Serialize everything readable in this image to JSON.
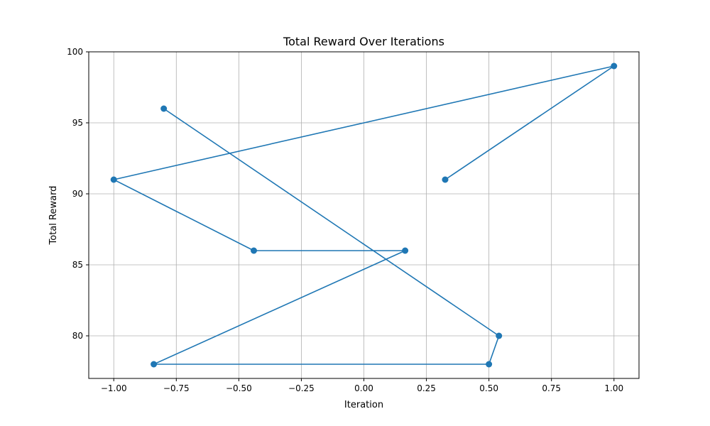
{
  "chart_data": {
    "type": "line",
    "title": "Total Reward Over Iterations",
    "xlabel": "Iteration",
    "ylabel": "Total Reward",
    "xlim": [
      -1.1,
      1.1
    ],
    "ylim": [
      77,
      100
    ],
    "x_ticks": [
      -1.0,
      -0.75,
      -0.5,
      -0.25,
      0.0,
      0.25,
      0.5,
      0.75,
      1.0
    ],
    "x_tick_labels": [
      "−1.00",
      "−0.75",
      "−0.50",
      "−0.25",
      "0.00",
      "0.25",
      "0.50",
      "0.75",
      "1.00"
    ],
    "y_ticks": [
      80,
      85,
      90,
      95,
      100
    ],
    "y_tick_labels": [
      "80",
      "85",
      "90",
      "95",
      "100"
    ],
    "grid": true,
    "series": [
      {
        "color": "#1f77b4",
        "marker": "circle",
        "x": [
          0.325,
          1.0,
          -1.0,
          -0.44,
          0.165,
          -0.84,
          0.5,
          0.54,
          -0.8
        ],
        "y": [
          91,
          99,
          91,
          86,
          86,
          78,
          78,
          80,
          96
        ]
      }
    ]
  }
}
